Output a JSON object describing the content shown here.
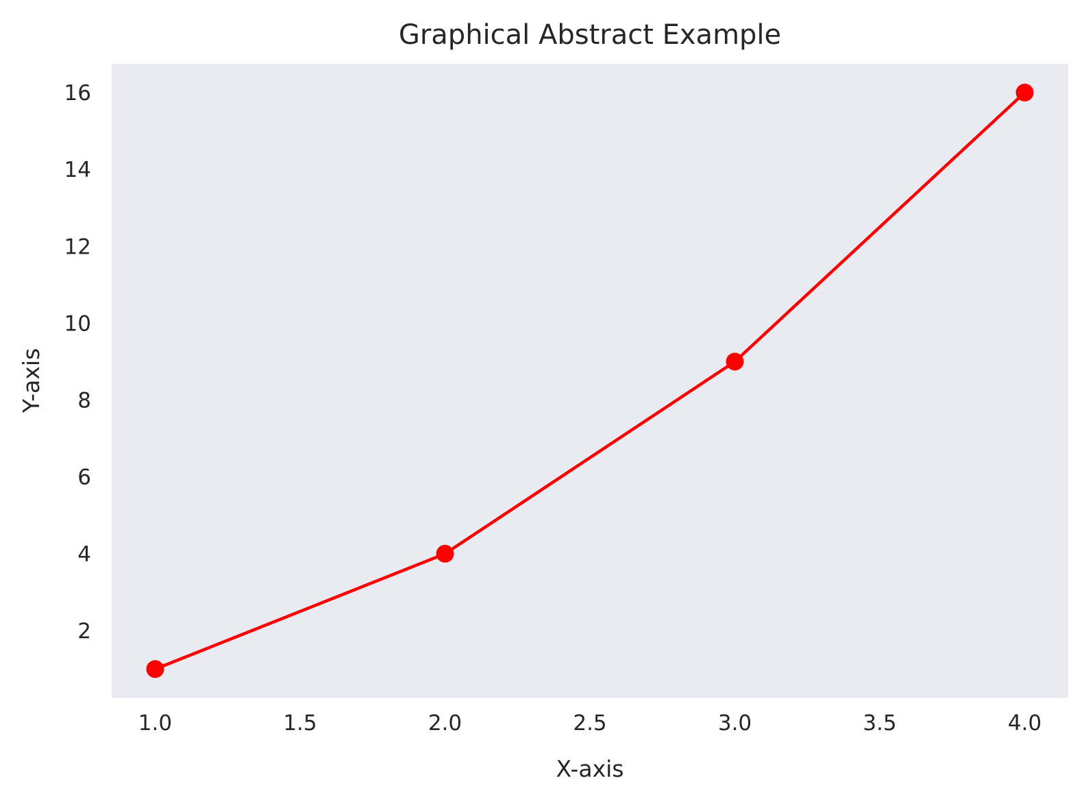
{
  "chart_data": {
    "type": "line",
    "title": "Graphical Abstract Example",
    "xlabel": "X-axis",
    "ylabel": "Y-axis",
    "xlim": [
      0.85,
      4.15
    ],
    "ylim": [
      0.25,
      16.75
    ],
    "grid": false,
    "background_color": "#eaeaf2",
    "series": [
      {
        "color": "#ff0000",
        "marker": "circle",
        "x": [
          1,
          2,
          3,
          4
        ],
        "y": [
          1,
          4,
          9,
          16
        ]
      }
    ],
    "xticks": [
      1.0,
      1.5,
      2.0,
      2.5,
      3.0,
      3.5,
      4.0
    ],
    "xtick_labels": [
      "1.0",
      "1.5",
      "2.0",
      "2.5",
      "3.0",
      "3.5",
      "4.0"
    ],
    "yticks": [
      2,
      4,
      6,
      8,
      10,
      12,
      14,
      16
    ],
    "ytick_labels": [
      "2",
      "4",
      "6",
      "8",
      "10",
      "12",
      "14",
      "16"
    ]
  }
}
